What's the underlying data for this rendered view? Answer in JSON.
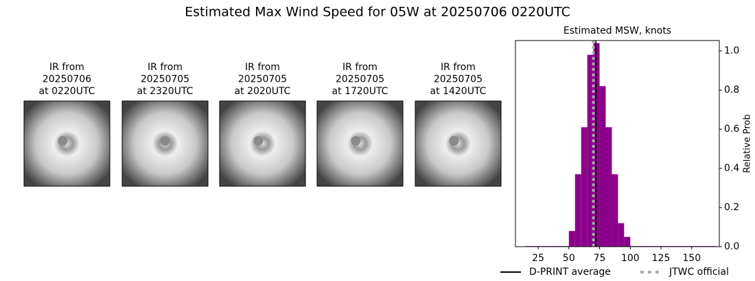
{
  "title": "Estimated Max Wind Speed for 05W at 20250706 0220UTC",
  "panels": [
    {
      "lines": [
        "IR from",
        "20250706",
        "at 0220UTC"
      ]
    },
    {
      "lines": [
        "IR from",
        "20250705",
        "at 2320UTC"
      ]
    },
    {
      "lines": [
        "IR from",
        "20250705",
        "at 2020UTC"
      ]
    },
    {
      "lines": [
        "IR from",
        "20250705",
        "at 1720UTC"
      ]
    },
    {
      "lines": [
        "IR from",
        "20250705",
        "at 1420UTC"
      ]
    }
  ],
  "chart_data": {
    "type": "histogram",
    "title": "Estimated MSW, knots",
    "ylabel": "Relative Prob",
    "bins": [
      15,
      50,
      55,
      60,
      65,
      70,
      75,
      80,
      85,
      90,
      95,
      100,
      170
    ],
    "counts": [
      0.003,
      0.08,
      0.37,
      0.61,
      0.98,
      1.04,
      0.82,
      0.61,
      0.37,
      0.12,
      0.05,
      0.003
    ],
    "color": "#8b008b",
    "xlim": [
      6.5,
      172.5
    ],
    "xticks": [
      25,
      50,
      75,
      100,
      125,
      150
    ],
    "ylim": [
      0,
      1.053
    ],
    "yticks": [
      {
        "value": 0,
        "label": "0.0"
      },
      {
        "value": 0.2,
        "label": "0.2"
      },
      {
        "value": 0.4,
        "label": "0.4"
      },
      {
        "value": 0.6,
        "label": "0.6"
      },
      {
        "value": 0.8,
        "label": "0.8"
      },
      {
        "value": 1.0,
        "label": "1.0"
      }
    ],
    "series": [
      {
        "name": "D-PRINT average",
        "color": "#000000",
        "value": 72,
        "style": "solid"
      },
      {
        "name": "JTWC official",
        "color": "#aaaaaa",
        "value": 70,
        "style": "dotted"
      }
    ]
  }
}
